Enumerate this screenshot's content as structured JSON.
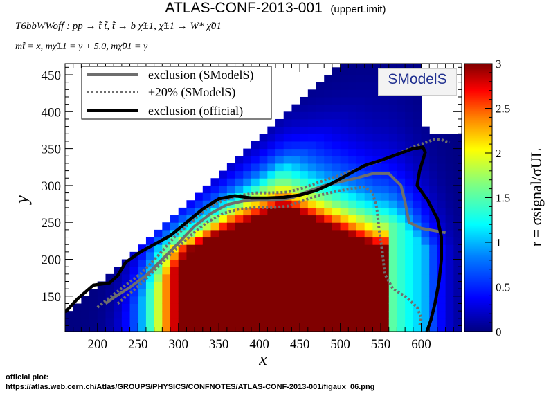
{
  "header": {
    "title": "ATLAS-CONF-2013-001",
    "subtitle": "(upperLimit)",
    "process": "T6bbWWoff : pp → t̃ t̃, t̃ → b χ̃±1, χ̃±1 → W* χ̃01",
    "masses": "mt̃ = x, mχ̃±1 = y + 5.0, mχ̃01 = y"
  },
  "footer": {
    "label": "official plot:",
    "url": "https://atlas.web.cern.ch/Atlas/GROUPS/PHYSICS/CONFNOTES/ATLAS-CONF-2013-001/figaux_06.png"
  },
  "logo": {
    "text": "SModelS"
  },
  "chart_data": {
    "type": "heatmap",
    "xlabel": "x",
    "ylabel": "y",
    "zlabel": "r = σsignal/σUL",
    "xlim": [
      160,
      650
    ],
    "ylim": [
      102,
      465
    ],
    "zlim": [
      0,
      3
    ],
    "x_ticks": [
      200,
      250,
      300,
      350,
      400,
      450,
      500,
      550,
      600
    ],
    "y_ticks": [
      150,
      200,
      250,
      300,
      350,
      400,
      450
    ],
    "z_ticks": [
      0,
      0.5,
      1,
      1.5,
      2,
      2.5,
      3
    ],
    "colormap": [
      "#000080",
      "#0000ff",
      "#0080ff",
      "#00ffff",
      "#80ff80",
      "#ffff00",
      "#ff8000",
      "#ff0000",
      "#800000"
    ],
    "legend": {
      "position": "top-left",
      "entries": [
        {
          "label": "exclusion (SModelS)",
          "color": "#6e6e6e",
          "style": "solid"
        },
        {
          "label": "±20% (SModelS)",
          "color": "#6e6e6e",
          "style": "dotted"
        },
        {
          "label": "exclusion (official)",
          "color": "#000000",
          "style": "solid"
        }
      ]
    },
    "contours": {
      "official": [
        [
          160,
          128
        ],
        [
          175,
          146
        ],
        [
          195,
          165
        ],
        [
          215,
          168
        ],
        [
          225,
          178
        ],
        [
          235,
          196
        ],
        [
          253,
          210
        ],
        [
          270,
          220
        ],
        [
          290,
          232
        ],
        [
          310,
          250
        ],
        [
          330,
          268
        ],
        [
          350,
          282
        ],
        [
          370,
          286
        ],
        [
          390,
          283
        ],
        [
          410,
          283
        ],
        [
          430,
          284
        ],
        [
          450,
          287
        ],
        [
          470,
          293
        ],
        [
          490,
          303
        ],
        [
          510,
          315
        ],
        [
          530,
          327
        ],
        [
          550,
          334
        ],
        [
          570,
          342
        ],
        [
          590,
          350
        ],
        [
          602,
          352
        ],
        [
          605,
          345
        ],
        [
          598,
          320
        ],
        [
          595,
          300
        ],
        [
          608,
          280
        ],
        [
          620,
          255
        ],
        [
          625,
          230
        ],
        [
          625,
          200
        ],
        [
          622,
          170
        ],
        [
          617,
          140
        ],
        [
          612,
          118
        ],
        [
          607,
          102
        ]
      ],
      "smodels": [
        [
          210,
          140
        ],
        [
          220,
          148
        ],
        [
          240,
          162
        ],
        [
          260,
          178
        ],
        [
          280,
          200
        ],
        [
          300,
          222
        ],
        [
          320,
          245
        ],
        [
          340,
          262
        ],
        [
          360,
          274
        ],
        [
          380,
          279
        ],
        [
          400,
          280
        ],
        [
          420,
          280
        ],
        [
          440,
          283
        ],
        [
          460,
          292
        ],
        [
          480,
          300
        ],
        [
          500,
          305
        ],
        [
          520,
          310
        ],
        [
          540,
          316
        ],
        [
          560,
          316
        ],
        [
          575,
          300
        ],
        [
          580,
          278
        ],
        [
          585,
          250
        ],
        [
          600,
          242
        ],
        [
          620,
          238
        ],
        [
          630,
          236
        ]
      ],
      "plus20": [
        [
          200,
          135
        ],
        [
          215,
          148
        ],
        [
          235,
          165
        ],
        [
          255,
          182
        ],
        [
          275,
          205
        ],
        [
          295,
          230
        ],
        [
          315,
          250
        ],
        [
          335,
          268
        ],
        [
          355,
          280
        ],
        [
          375,
          286
        ],
        [
          395,
          290
        ],
        [
          415,
          290
        ],
        [
          435,
          291
        ],
        [
          455,
          297
        ],
        [
          475,
          305
        ],
        [
          495,
          312
        ],
        [
          515,
          320
        ],
        [
          535,
          328
        ],
        [
          555,
          335
        ],
        [
          575,
          345
        ],
        [
          590,
          352
        ],
        [
          605,
          358
        ],
        [
          615,
          362
        ],
        [
          625,
          362
        ],
        [
          635,
          358
        ]
      ],
      "minus20": [
        [
          225,
          140
        ],
        [
          238,
          152
        ],
        [
          255,
          168
        ],
        [
          275,
          190
        ],
        [
          295,
          212
        ],
        [
          315,
          232
        ],
        [
          335,
          250
        ],
        [
          355,
          262
        ],
        [
          375,
          268
        ],
        [
          395,
          270
        ],
        [
          415,
          270
        ],
        [
          435,
          272
        ],
        [
          455,
          280
        ],
        [
          475,
          287
        ],
        [
          495,
          292
        ],
        [
          515,
          296
        ],
        [
          530,
          298
        ],
        [
          540,
          290
        ],
        [
          545,
          270
        ],
        [
          548,
          240
        ],
        [
          552,
          210
        ],
        [
          555,
          180
        ],
        [
          565,
          160
        ],
        [
          580,
          150
        ],
        [
          595,
          135
        ],
        [
          600,
          120
        ],
        [
          598,
          110
        ]
      ]
    },
    "data_description": "r values on a grid of x (160–650) and y (102–465); near 3 (dark red) for y < 210 and 330 < x < 530, decreasing toward 0 (dark blue) at large y and toward the diagonal edge."
  }
}
